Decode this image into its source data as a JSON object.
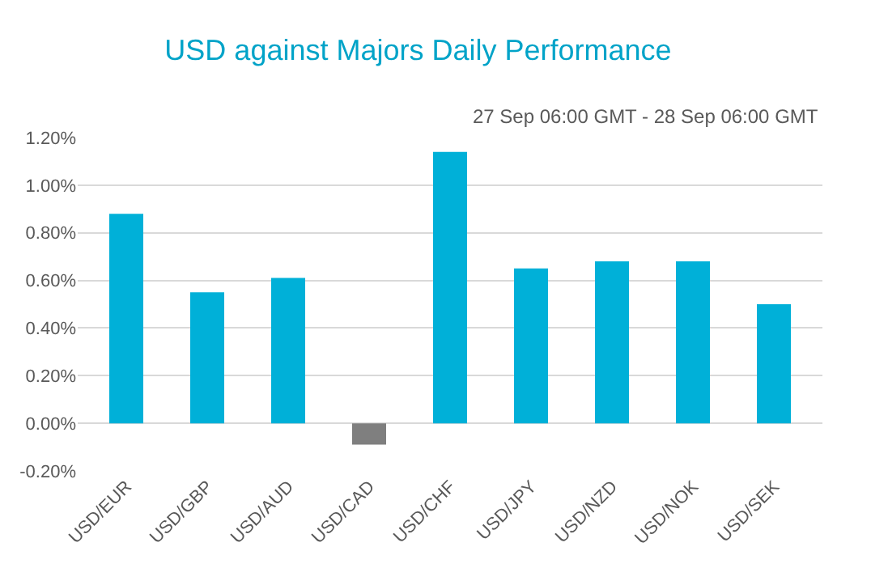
{
  "chart_data": {
    "type": "bar",
    "title": "USD against Majors Daily Performance",
    "subtitle": "27 Sep 06:00 GMT - 28 Sep 06:00 GMT",
    "categories": [
      "USD/EUR",
      "USD/GBP",
      "USD/AUD",
      "USD/CAD",
      "USD/CHF",
      "USD/JPY",
      "USD/NZD",
      "USD/NOK",
      "USD/SEK"
    ],
    "values": [
      0.88,
      0.55,
      0.61,
      -0.09,
      1.14,
      0.65,
      0.68,
      0.68,
      0.5
    ],
    "colors": [
      "#00b0d8",
      "#00b0d8",
      "#00b0d8",
      "#7f7f7f",
      "#00b0d8",
      "#00b0d8",
      "#00b0d8",
      "#00b0d8",
      "#00b0d8"
    ],
    "ylim": [
      -0.2,
      1.2
    ],
    "yticks": [
      {
        "value": -0.2,
        "label": "-0.20%"
      },
      {
        "value": 0,
        "label": "0.00%"
      },
      {
        "value": 0.2,
        "label": "0.20%"
      },
      {
        "value": 0.4,
        "label": "0.40%"
      },
      {
        "value": 0.6,
        "label": "0.60%"
      },
      {
        "value": 0.8,
        "label": "0.80%"
      },
      {
        "value": 1.0,
        "label": "1.00%"
      },
      {
        "value": 1.2,
        "label": "1.20%"
      }
    ],
    "grid": "y"
  }
}
